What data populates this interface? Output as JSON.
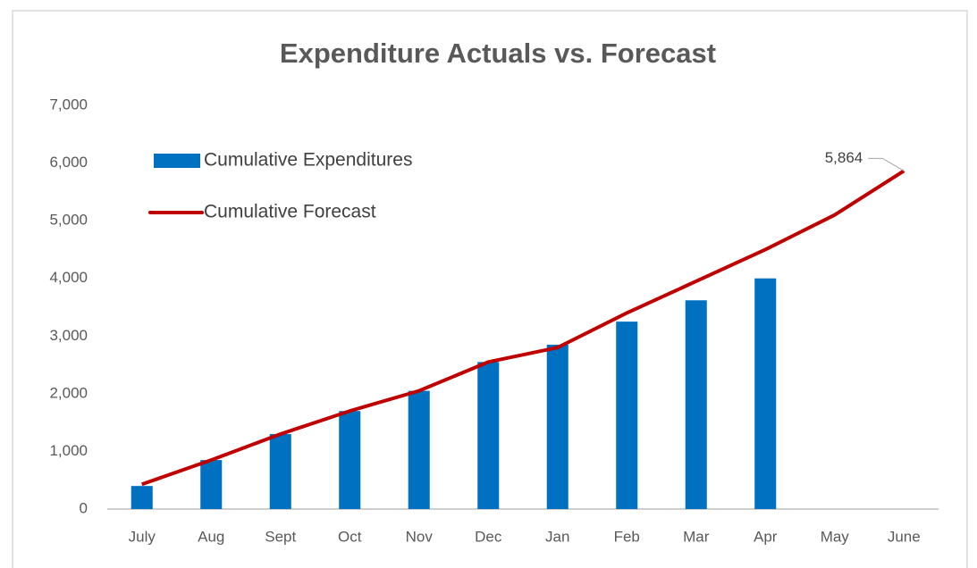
{
  "chart_data": {
    "type": "bar_line",
    "title": "Expenditure Actuals vs. Forecast",
    "categories": [
      "July",
      "Aug",
      "Sept",
      "Oct",
      "Nov",
      "Dec",
      "Jan",
      "Feb",
      "Mar",
      "Apr",
      "May",
      "June"
    ],
    "series": [
      {
        "name": "Cumulative Expenditures",
        "type": "bar",
        "color": "#0070c0",
        "values": [
          400,
          850,
          1300,
          1700,
          2050,
          2550,
          2850,
          3250,
          3620,
          4000,
          null,
          null
        ]
      },
      {
        "name": "Cumulative Forecast",
        "type": "line",
        "color": "#c00000",
        "values": [
          430,
          850,
          1300,
          1700,
          2050,
          2550,
          2800,
          3400,
          3950,
          4500,
          5100,
          5864
        ],
        "value_labels": [
          null,
          null,
          null,
          null,
          null,
          null,
          null,
          null,
          null,
          null,
          null,
          "5,864"
        ]
      }
    ],
    "ylim": [
      0,
      7000
    ],
    "yticks": [
      0,
      {
        "value": 1000,
        "label": "1,000"
      },
      {
        "value": 2000,
        "label": "2,000"
      },
      {
        "value": 3000,
        "label": "3,000"
      },
      {
        "value": 4000,
        "label": "4,000"
      },
      {
        "value": 5000,
        "label": "5,000"
      },
      {
        "value": 6000,
        "label": "6,000"
      },
      {
        "value": 7000,
        "label": "7,000"
      }
    ],
    "grid": false,
    "legend": "upper left"
  }
}
